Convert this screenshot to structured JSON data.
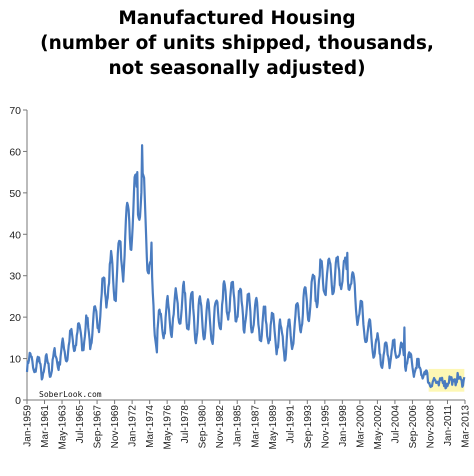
{
  "chart_data": {
    "type": "line",
    "title_lines": [
      "Manufactured Housing",
      "(number of units shipped, thousands,",
      "not seasonally adjusted)"
    ],
    "xlabel": "",
    "ylabel": "",
    "ylim": [
      0,
      70
    ],
    "yticks": [
      0,
      10,
      20,
      30,
      40,
      50,
      60,
      70
    ],
    "xlim_years": [
      1959.0,
      2013.25
    ],
    "xtick_labels": [
      "Jan-1959",
      "Mar-1961",
      "May-1963",
      "Jul-1965",
      "Sep-1967",
      "Nov-1969",
      "Jan-1972",
      "Mar-1974",
      "May-1976",
      "Jul-1978",
      "Sep-1980",
      "Nov-1982",
      "Jan-1985",
      "Mar-1987",
      "May-1989",
      "Jul-1991",
      "Sep-1993",
      "Nov-1995",
      "Jan-1998",
      "Mar-2000",
      "May-2002",
      "Jul-2004",
      "Sep-2006",
      "Nov-2008",
      "Jan-2011",
      "Mar-2013"
    ],
    "grid": false,
    "legend": "none",
    "series_color": "#4a7cc0",
    "highlight_color": "#fdf7b4",
    "highlight_range": {
      "x": [
        "2008-10",
        "2013-03"
      ],
      "y": [
        2,
        7.5
      ]
    },
    "watermark": "SoberLook.com",
    "series": [
      {
        "annual_base": [
          [
            "1959-01",
            9.5
          ],
          [
            "1960-01",
            8.5
          ],
          [
            "1961-01",
            7.5
          ],
          [
            "1962-01",
            8.5
          ],
          [
            "1963-01",
            10.5
          ],
          [
            "1964-01",
            12.5
          ],
          [
            "1965-01",
            15
          ],
          [
            "1966-01",
            16
          ],
          [
            "1967-01",
            16.5
          ],
          [
            "1968-01",
            22
          ],
          [
            "1969-01",
            29
          ],
          [
            "1970-01",
            30
          ],
          [
            "1971-01",
            37
          ],
          [
            "1972-01",
            45
          ],
          [
            "1973-01",
            50
          ],
          [
            "1973-07",
            48
          ],
          [
            "1974-01",
            36
          ],
          [
            "1974-07",
            25
          ],
          [
            "1975-01",
            17
          ],
          [
            "1976-01",
            19
          ],
          [
            "1977-01",
            21
          ],
          [
            "1978-01",
            23
          ],
          [
            "1979-01",
            22
          ],
          [
            "1980-01",
            19.5
          ],
          [
            "1981-01",
            19.5
          ],
          [
            "1982-01",
            18
          ],
          [
            "1983-01",
            22
          ],
          [
            "1984-01",
            24.5
          ],
          [
            "1985-01",
            23.5
          ],
          [
            "1986-01",
            21.5
          ],
          [
            "1987-01",
            20.5
          ],
          [
            "1988-01",
            18.5
          ],
          [
            "1989-01",
            17.5
          ],
          [
            "1990-01",
            15.5
          ],
          [
            "1991-01",
            14
          ],
          [
            "1992-01",
            17.5
          ],
          [
            "1993-01",
            21
          ],
          [
            "1994-01",
            25
          ],
          [
            "1995-01",
            28
          ],
          [
            "1996-01",
            30
          ],
          [
            "1997-01",
            29.5
          ],
          [
            "1998-01",
            31
          ],
          [
            "1999-01",
            30
          ],
          [
            "2000-01",
            22
          ],
          [
            "2001-01",
            17
          ],
          [
            "2002-01",
            14
          ],
          [
            "2003-01",
            11
          ],
          [
            "2004-01",
            11
          ],
          [
            "2005-01",
            12
          ],
          [
            "2006-01",
            10
          ],
          [
            "2007-01",
            8
          ],
          [
            "2008-01",
            7
          ],
          [
            "2009-01",
            4.2
          ],
          [
            "2010-01",
            4.3
          ],
          [
            "2011-01",
            4.3
          ],
          [
            "2012-01",
            4.8
          ],
          [
            "2013-03",
            5.0
          ]
        ],
        "seasonal_amplitude": [
          [
            "1959-01",
            2
          ],
          [
            "1963-01",
            2.5
          ],
          [
            "1967-01",
            4
          ],
          [
            "1970-01",
            6
          ],
          [
            "1972-01",
            8
          ],
          [
            "1974-01",
            6
          ],
          [
            "1975-01",
            4
          ],
          [
            "1978-01",
            5
          ],
          [
            "1983-01",
            5
          ],
          [
            "1985-01",
            5
          ],
          [
            "1990-01",
            4
          ],
          [
            "1995-01",
            5
          ],
          [
            "2000-01",
            4
          ],
          [
            "2004-01",
            2.5
          ],
          [
            "2007-01",
            2
          ],
          [
            "2009-01",
            0.8
          ],
          [
            "2013-03",
            0.8
          ]
        ],
        "peaks": [
          {
            "x": "1973-04",
            "y": 61.5
          },
          {
            "x": "1972-09",
            "y": 55
          },
          {
            "x": "1974-06",
            "y": 38
          },
          {
            "x": "1975-02",
            "y": 11.5
          },
          {
            "x": "2005-10",
            "y": 17.5
          },
          {
            "x": "1998-09",
            "y": 35.5
          }
        ]
      }
    ]
  }
}
